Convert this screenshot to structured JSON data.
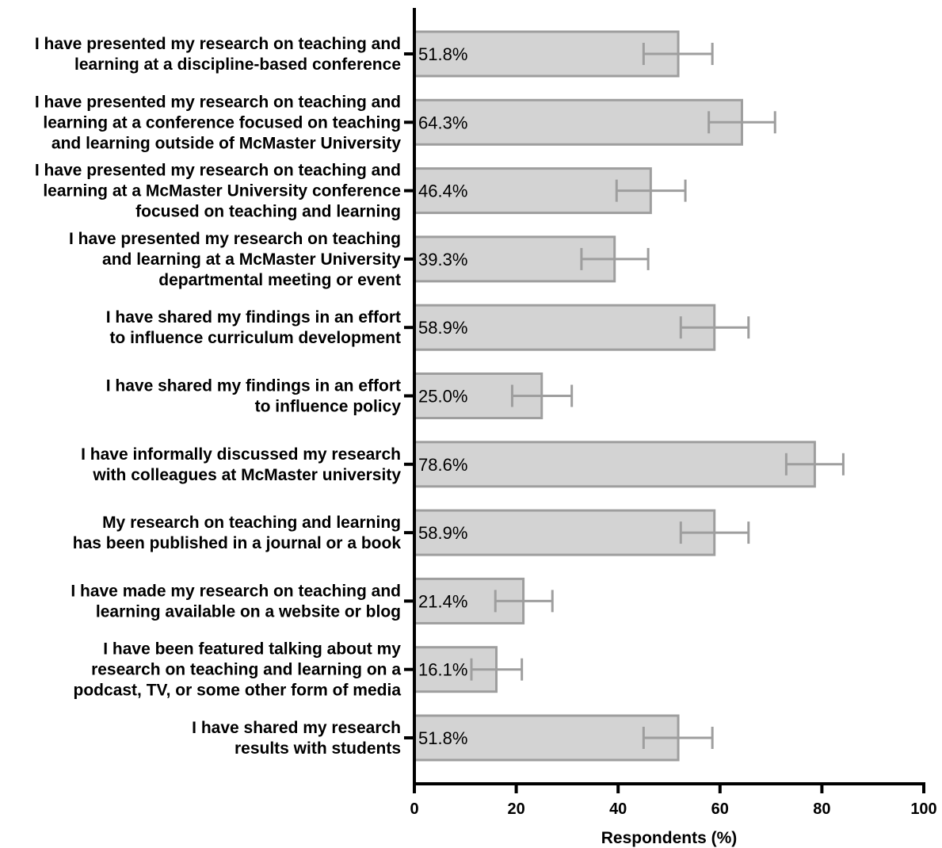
{
  "chart_data": {
    "type": "bar",
    "orientation": "horizontal",
    "categories": [
      [
        "I have presented my research on teaching and",
        "learning at a discipline-based conference"
      ],
      [
        "I have presented my research on teaching and",
        "learning at a conference focused on teaching",
        "and learning outside of McMaster University"
      ],
      [
        "I have presented my research on teaching and",
        "learning at a McMaster University conference",
        "focused on teaching and learning"
      ],
      [
        "I have presented my research on teaching",
        "and learning at a McMaster University",
        "departmental meeting or event"
      ],
      [
        "I have shared my findings in an effort",
        "to influence curriculum development"
      ],
      [
        "I have shared my findings in an effort",
        "to influence policy"
      ],
      [
        "I have informally discussed my research",
        "with colleagues at McMaster university"
      ],
      [
        "My research on teaching and learning",
        "has been published in a journal or a book"
      ],
      [
        "I have made my research on teaching and",
        "learning available on a website or blog"
      ],
      [
        "I have been featured talking about my",
        "research on teaching and learning on a",
        "podcast, TV, or some other form of media"
      ],
      [
        "I have shared my research",
        "results with students"
      ]
    ],
    "values": [
      51.8,
      64.3,
      46.4,
      39.3,
      58.9,
      25.0,
      78.6,
      58.9,
      21.4,
      16.1,
      51.8
    ],
    "value_labels": [
      "51.8%",
      "64.3%",
      "46.4%",
      "39.3%",
      "58.9%",
      "25.0%",
      "78.6%",
      "58.9%",
      "21.4%",
      "16.1%",
      "51.8%"
    ],
    "error_low": [
      45.0,
      57.8,
      39.7,
      32.8,
      52.3,
      19.2,
      73.0,
      52.3,
      15.9,
      11.2,
      45.0
    ],
    "error_high": [
      58.5,
      70.8,
      53.2,
      45.9,
      65.6,
      30.9,
      84.2,
      65.6,
      27.1,
      21.1,
      58.5
    ],
    "xlabel": "Respondents (%)",
    "xlim": [
      0,
      100
    ],
    "xticks": [
      0,
      20,
      40,
      60,
      80,
      100
    ],
    "grid": false,
    "colors": {
      "bar_fill": "#d3d3d3",
      "bar_stroke": "#9e9e9e",
      "error_bar": "#9e9e9e",
      "axis": "#000000"
    }
  }
}
